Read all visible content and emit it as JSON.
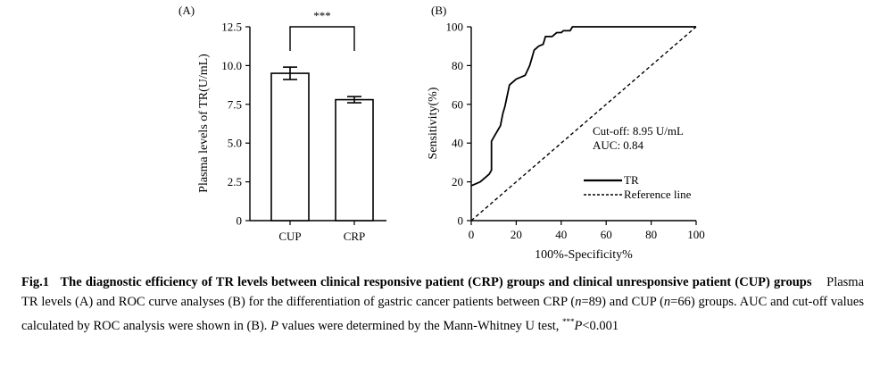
{
  "chart_data": [
    {
      "type": "bar",
      "panel_label": "(A)",
      "categories": [
        "CUP",
        "CRP"
      ],
      "values": [
        9.5,
        7.8
      ],
      "error": [
        0.4,
        0.2
      ],
      "ylabel": "Plasma levels of TR(U/mL)",
      "ylim": [
        0,
        12.5
      ],
      "yticks": [
        "0",
        "2.5",
        "5.0",
        "7.5",
        "10.0",
        "12.5"
      ],
      "significance": "***",
      "grid": false
    },
    {
      "type": "line",
      "panel_label": "(B)",
      "xlabel": "100%-Specificity%",
      "ylabel": "Sensitivity(%)",
      "xlim": [
        0,
        100
      ],
      "ylim": [
        0,
        100
      ],
      "xticks": [
        "0",
        "20",
        "40",
        "60",
        "80",
        "100"
      ],
      "yticks": [
        "0",
        "20",
        "40",
        "60",
        "80",
        "100"
      ],
      "series": [
        {
          "name": "TR",
          "x": [
            0,
            2,
            4,
            6,
            8,
            9,
            9,
            11,
            12,
            13,
            14,
            15,
            17,
            18,
            20,
            22,
            24,
            26,
            28,
            30,
            32,
            33,
            36,
            38,
            40,
            41,
            44,
            45,
            50,
            60,
            70,
            80,
            90,
            100
          ],
          "y": [
            18,
            19,
            20,
            22,
            24,
            26,
            41,
            45,
            47,
            49,
            55,
            59,
            70,
            71,
            73,
            74,
            75,
            80,
            88,
            90,
            91,
            95,
            95,
            97,
            97,
            98,
            98,
            100,
            100,
            100,
            100,
            100,
            100,
            100
          ],
          "style": "solid"
        },
        {
          "name": "Reference line",
          "x": [
            0,
            100
          ],
          "y": [
            0,
            100
          ],
          "style": "dashed"
        }
      ],
      "annotations": [
        "Cut-off: 8.95 U/mL",
        "AUC: 0.84"
      ],
      "legend": "right",
      "grid": false
    }
  ],
  "caption": {
    "fig_label": "Fig.1",
    "title": "The diagnostic efficiency of TR levels between clinical responsive patient (CRP) groups and clinical unresponsive patient (CUP) groups",
    "body_1": "Plasma TR levels (A) and ROC curve analyses (B) for the differentiation of gastric cancer patients between CRP (",
    "n_1": "n",
    "eq_1": "=89) and CUP (",
    "n_2": "n",
    "eq_2": "=66) groups. AUC and cut-off values calculated by ROC analysis were shown in (B). ",
    "p_1": "P",
    "body_2": " values were determined by the Mann-Whitney U test, ",
    "stars": "***",
    "p_2": "P",
    "body_3": "<0.001"
  }
}
